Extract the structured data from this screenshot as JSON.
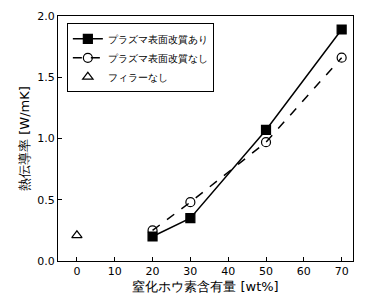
{
  "chart_data": {
    "type": "line",
    "x_label": "窒化ホウ素含有量 [wt%]",
    "y_label": "熱伝導率 [W/mK]",
    "series": [
      {
        "name": "プラズマ表面改質あり",
        "color": "#000000",
        "marker": "square",
        "line_style": "solid",
        "x": [
          20,
          30,
          50,
          70
        ],
        "values": [
          0.2,
          0.35,
          1.07,
          1.89
        ]
      },
      {
        "name": "プラズマ表面改質なし",
        "color": "#000000",
        "marker": "circle-open",
        "line_style": "dashed",
        "x": [
          20,
          30,
          50,
          70
        ],
        "values": [
          0.25,
          0.48,
          0.97,
          1.66
        ]
      },
      {
        "name": "フィラーなし",
        "color": "#000000",
        "marker": "triangle-up-open",
        "line_style": "none",
        "x": [
          0
        ],
        "values": [
          0.21
        ]
      }
    ],
    "xlim": [
      -5,
      73
    ],
    "xticks": [
      0,
      10,
      20,
      30,
      40,
      50,
      60,
      70
    ],
    "ylim": [
      0,
      2
    ],
    "yticks": [
      {
        "value": 0,
        "label": "0.0"
      },
      {
        "value": 0.5,
        "label": "0.5"
      },
      {
        "value": 1,
        "label": "1.0"
      },
      {
        "value": 1.5,
        "label": "1.5"
      },
      {
        "value": 2,
        "label": "2.0"
      }
    ],
    "grid": false,
    "legend": "upper left"
  }
}
